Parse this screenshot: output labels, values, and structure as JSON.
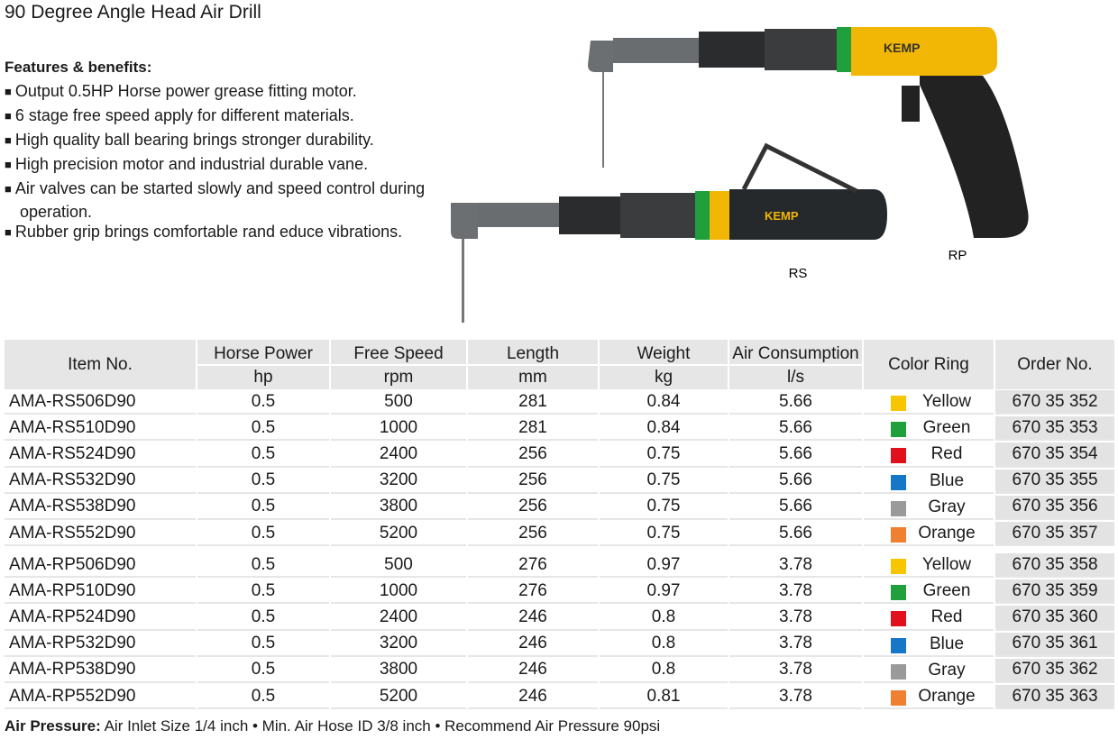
{
  "title": "90 Degree Angle Head Air Drill",
  "features": {
    "heading": "Features & benefits:",
    "items": [
      "Output 0.5HP Horse power grease fitting motor.",
      "6 stage free speed apply for different materials.",
      "High quality ball bearing brings stronger durability.",
      "High precision motor and industrial durable vane.",
      "Air valves can be started slowly and speed control during operation.",
      "Rubber grip brings comfortable rand educe vibrations."
    ]
  },
  "images": {
    "rs_label": "RS",
    "rp_label": "RP"
  },
  "table": {
    "columns": [
      {
        "label": "Item No."
      },
      {
        "label": "Horse Power",
        "unit": "hp"
      },
      {
        "label": "Free Speed",
        "unit": "rpm"
      },
      {
        "label": "Length",
        "unit": "mm"
      },
      {
        "label": "Weight",
        "unit": "kg"
      },
      {
        "label": "Air Consumption",
        "unit": "l/s"
      },
      {
        "label": "Color Ring"
      },
      {
        "label": "Order No."
      }
    ],
    "groups": [
      {
        "rows": [
          [
            "AMA-RS506D90",
            "0.5",
            "500",
            "281",
            "0.84",
            "5.66",
            {
              "label": "Yellow",
              "color": "#f7c600"
            },
            "670 35 352"
          ],
          [
            "AMA-RS510D90",
            "0.5",
            "1000",
            "281",
            "0.84",
            "5.66",
            {
              "label": "Green",
              "color": "#1fa03c"
            },
            "670 35 353"
          ],
          [
            "AMA-RS524D90",
            "0.5",
            "2400",
            "256",
            "0.75",
            "5.66",
            {
              "label": "Red",
              "color": "#e0101c"
            },
            "670 35 354"
          ],
          [
            "AMA-RS532D90",
            "0.5",
            "3200",
            "256",
            "0.75",
            "5.66",
            {
              "label": "Blue",
              "color": "#1677c8"
            },
            "670 35 355"
          ],
          [
            "AMA-RS538D90",
            "0.5",
            "3800",
            "256",
            "0.75",
            "5.66",
            {
              "label": "Gray",
              "color": "#9a9a9a"
            },
            "670 35 356"
          ],
          [
            "AMA-RS552D90",
            "0.5",
            "5200",
            "256",
            "0.75",
            "5.66",
            {
              "label": "Orange",
              "color": "#ef8030"
            },
            "670 35 357"
          ]
        ]
      },
      {
        "rows": [
          [
            "AMA-RP506D90",
            "0.5",
            "500",
            "276",
            "0.97",
            "3.78",
            {
              "label": "Yellow",
              "color": "#f7c600"
            },
            "670 35 358"
          ],
          [
            "AMA-RP510D90",
            "0.5",
            "1000",
            "276",
            "0.97",
            "3.78",
            {
              "label": "Green",
              "color": "#1fa03c"
            },
            "670 35 359"
          ],
          [
            "AMA-RP524D90",
            "0.5",
            "2400",
            "246",
            "0.8",
            "3.78",
            {
              "label": "Red",
              "color": "#e0101c"
            },
            "670 35 360"
          ],
          [
            "AMA-RP532D90",
            "0.5",
            "3200",
            "246",
            "0.8",
            "3.78",
            {
              "label": "Blue",
              "color": "#1677c8"
            },
            "670 35 361"
          ],
          [
            "AMA-RP538D90",
            "0.5",
            "3800",
            "246",
            "0.8",
            "3.78",
            {
              "label": "Gray",
              "color": "#9a9a9a"
            },
            "670 35 362"
          ],
          [
            "AMA-RP552D90",
            "0.5",
            "5200",
            "246",
            "0.81",
            "3.78",
            {
              "label": "Orange",
              "color": "#ef8030"
            },
            "670 35 363"
          ]
        ]
      }
    ]
  },
  "footer": {
    "label": "Air Pressure:",
    "text": "Air Inlet Size 1/4 inch • Min. Air Hose ID 3/8 inch • Recommend Air Pressure 90psi"
  }
}
